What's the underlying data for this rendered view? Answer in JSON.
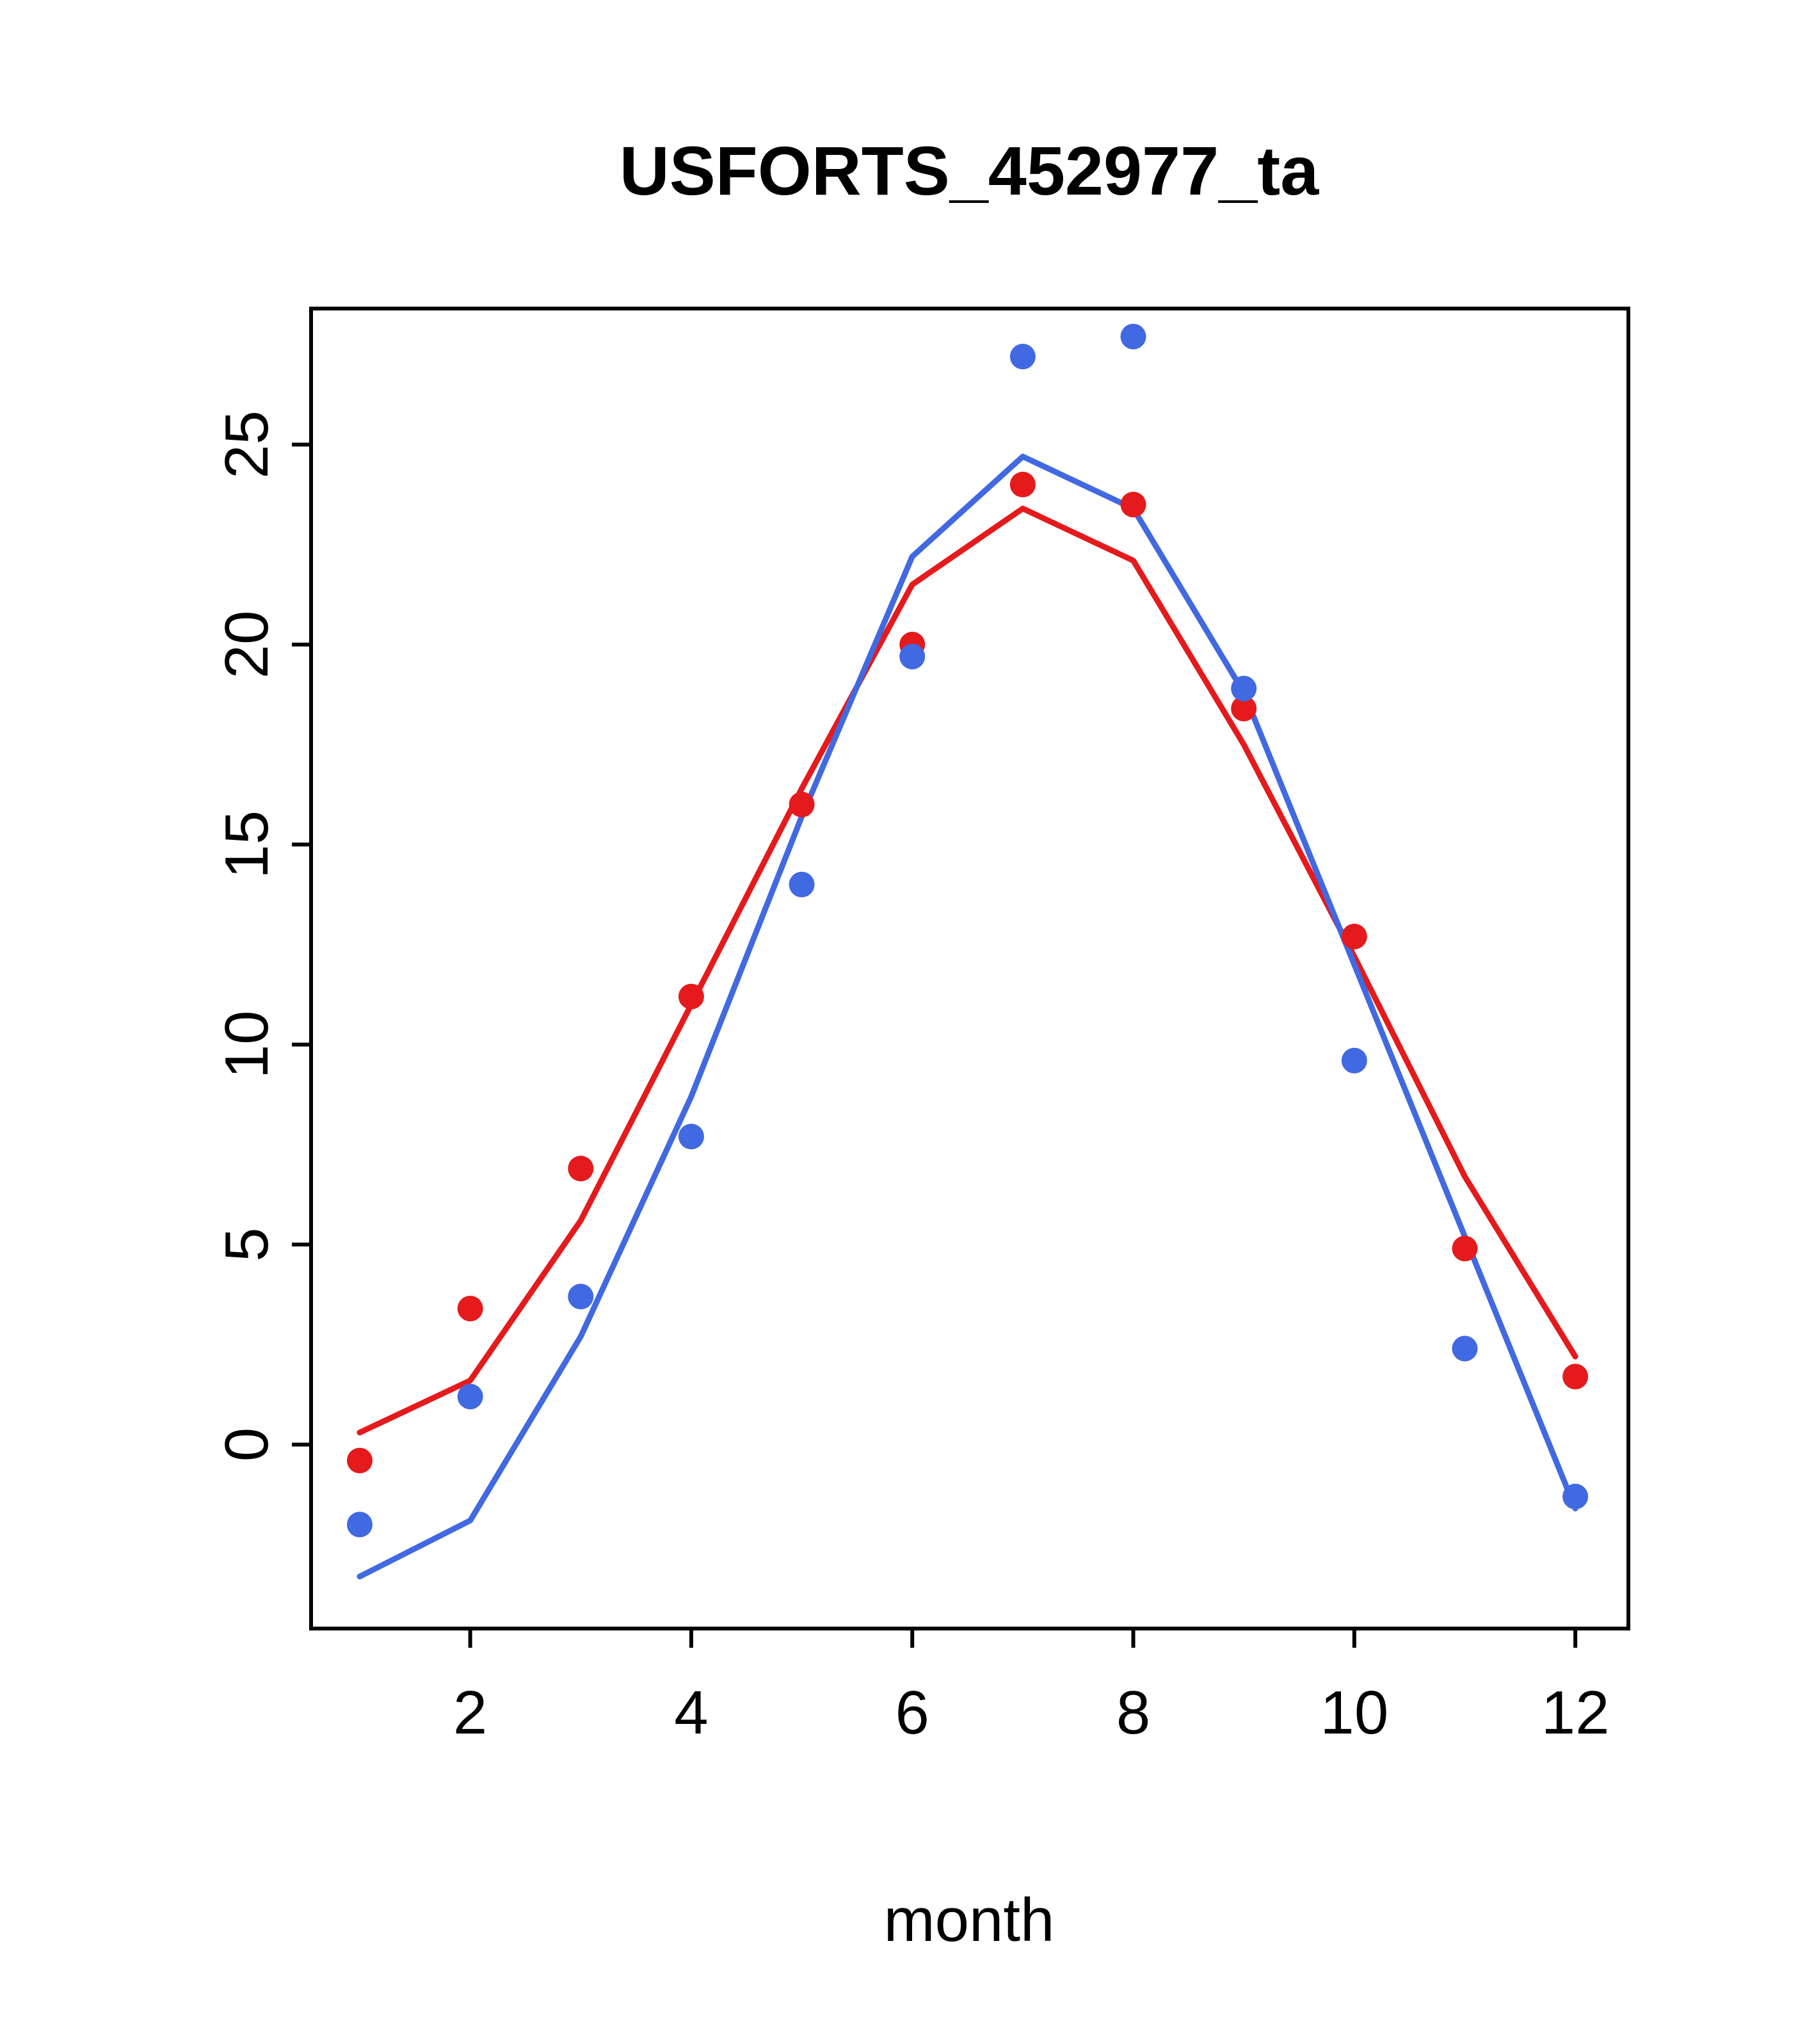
{
  "chart_data": {
    "type": "line",
    "title": "USFORTS_452977_ta",
    "xlabel": "month",
    "ylabel": "",
    "x": [
      1,
      2,
      3,
      4,
      5,
      6,
      7,
      8,
      9,
      10,
      11,
      12
    ],
    "xticks": [
      2,
      4,
      6,
      8,
      10,
      12
    ],
    "yticks": [
      0,
      5,
      10,
      15,
      20,
      25
    ],
    "xlim": [
      0.56,
      12.48
    ],
    "ylim": [
      -4.6,
      28.4
    ],
    "grid": false,
    "legend": "none",
    "colors": {
      "red": "#E41A1C",
      "blue": "#4169E1",
      "axis": "#000000",
      "background": "#FFFFFF"
    },
    "series": [
      {
        "name": "red-fit",
        "kind": "line",
        "color": "#E41A1C",
        "values": [
          0.3,
          1.6,
          5.6,
          11.0,
          16.4,
          21.5,
          23.4,
          22.1,
          17.5,
          12.2,
          6.7,
          2.2
        ]
      },
      {
        "name": "blue-fit",
        "kind": "line",
        "color": "#4169E1",
        "values": [
          -3.3,
          -1.9,
          2.7,
          8.7,
          15.7,
          22.2,
          24.7,
          23.4,
          18.8,
          12.0,
          5.2,
          -1.6
        ]
      },
      {
        "name": "red-observed",
        "kind": "points",
        "color": "#E41A1C",
        "values": [
          -0.4,
          3.4,
          6.9,
          11.2,
          16.0,
          20.0,
          24.0,
          23.5,
          18.4,
          12.7,
          4.9,
          1.7
        ]
      },
      {
        "name": "blue-observed",
        "kind": "points",
        "color": "#4169E1",
        "values": [
          -2.0,
          1.2,
          3.7,
          7.7,
          14.0,
          19.7,
          27.2,
          27.7,
          18.9,
          9.6,
          2.4,
          -1.3
        ]
      }
    ]
  }
}
